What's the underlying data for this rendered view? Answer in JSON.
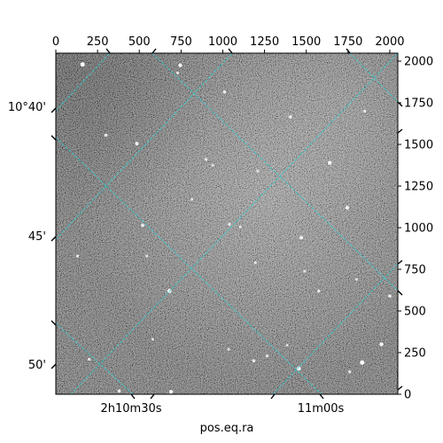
{
  "chart_data": {
    "type": "image",
    "xlabel": "pos.eq.ra",
    "ylabel": "",
    "pixel_axes": {
      "x": {
        "range": [
          0,
          2048
        ],
        "ticks": [
          0,
          250,
          500,
          750,
          1000,
          1250,
          1500,
          1750,
          2000
        ],
        "tick_labels": [
          "0",
          "250",
          "500",
          "750",
          "1000",
          "1250",
          "1500",
          "1750",
          "2000"
        ],
        "placement": "top"
      },
      "y": {
        "range": [
          0,
          2048
        ],
        "ticks": [
          0,
          250,
          500,
          750,
          1000,
          1250,
          1500,
          1750,
          2000
        ],
        "tick_labels": [
          "0",
          "250",
          "500",
          "750",
          "1000",
          "1250",
          "1500",
          "1750",
          "2000"
        ],
        "placement": "right"
      }
    },
    "world_axes": {
      "ra": {
        "tick_labels": [
          "2h10m30s",
          "11m00s"
        ],
        "placement": "bottom"
      },
      "dec": {
        "tick_labels": [
          "10°40'",
          "45'",
          "50'"
        ],
        "placement": "left"
      }
    },
    "image": {
      "colormap": "gray",
      "background_level": 0.45
    },
    "grid": {
      "on": true,
      "color": "#2fd0d0",
      "style": "dashed"
    },
    "stars": [
      {
        "x": 160,
        "y": 1980,
        "b": 1.0
      },
      {
        "x": 745,
        "y": 1975,
        "b": 0.8
      },
      {
        "x": 1010,
        "y": 1815,
        "b": 0.6
      },
      {
        "x": 1405,
        "y": 1665,
        "b": 0.6
      },
      {
        "x": 1850,
        "y": 1700,
        "b": 0.5
      },
      {
        "x": 300,
        "y": 1555,
        "b": 0.6
      },
      {
        "x": 485,
        "y": 1505,
        "b": 0.7
      },
      {
        "x": 900,
        "y": 1410,
        "b": 0.5
      },
      {
        "x": 940,
        "y": 1375,
        "b": 0.4
      },
      {
        "x": 1640,
        "y": 1390,
        "b": 0.8
      },
      {
        "x": 1210,
        "y": 1340,
        "b": 0.4
      },
      {
        "x": 815,
        "y": 1170,
        "b": 0.4
      },
      {
        "x": 1745,
        "y": 1120,
        "b": 0.7
      },
      {
        "x": 520,
        "y": 1015,
        "b": 0.6
      },
      {
        "x": 1040,
        "y": 1020,
        "b": 0.5
      },
      {
        "x": 1105,
        "y": 1005,
        "b": 0.4
      },
      {
        "x": 1470,
        "y": 940,
        "b": 0.7
      },
      {
        "x": 130,
        "y": 830,
        "b": 0.5
      },
      {
        "x": 545,
        "y": 830,
        "b": 0.4
      },
      {
        "x": 1195,
        "y": 790,
        "b": 0.4
      },
      {
        "x": 1490,
        "y": 740,
        "b": 0.4
      },
      {
        "x": 680,
        "y": 620,
        "b": 0.9
      },
      {
        "x": 1575,
        "y": 620,
        "b": 0.5
      },
      {
        "x": 1800,
        "y": 690,
        "b": 0.4
      },
      {
        "x": 2000,
        "y": 590,
        "b": 0.6
      },
      {
        "x": 580,
        "y": 330,
        "b": 0.4
      },
      {
        "x": 200,
        "y": 210,
        "b": 0.5
      },
      {
        "x": 1385,
        "y": 295,
        "b": 0.4
      },
      {
        "x": 1950,
        "y": 300,
        "b": 0.8
      },
      {
        "x": 1455,
        "y": 155,
        "b": 0.9
      },
      {
        "x": 1835,
        "y": 190,
        "b": 1.0
      },
      {
        "x": 1185,
        "y": 200,
        "b": 0.6
      },
      {
        "x": 1265,
        "y": 230,
        "b": 0.5
      },
      {
        "x": 1760,
        "y": 135,
        "b": 0.5
      },
      {
        "x": 380,
        "y": 20,
        "b": 0.6
      },
      {
        "x": 690,
        "y": 15,
        "b": 0.8
      },
      {
        "x": 1035,
        "y": 270,
        "b": 0.4
      },
      {
        "x": 730,
        "y": 1930,
        "b": 0.5
      }
    ]
  }
}
